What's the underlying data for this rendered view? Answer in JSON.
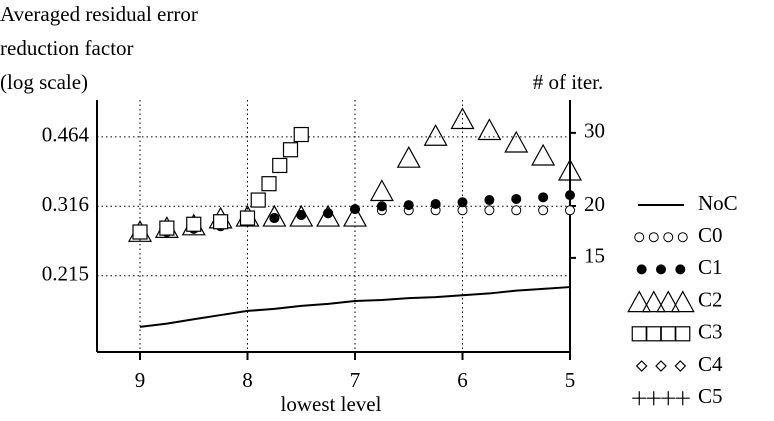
{
  "chart_data": {
    "type": "line",
    "ylabel": [
      "Averaged residual error",
      "reduction factor",
      "(log scale)"
    ],
    "y2label": "# of iter.",
    "xlabel": "lowest level",
    "x": [
      9,
      8.75,
      8.5,
      8.25,
      8,
      7.75,
      7.5,
      7.25,
      7,
      6.75,
      6.5,
      6.25,
      6,
      5.75,
      5.5,
      5.25,
      5
    ],
    "xlim": [
      9.4,
      5
    ],
    "xticks": [
      9,
      8,
      7,
      6,
      5
    ],
    "ylim": [
      0.141,
      0.569
    ],
    "yticks": [
      0.215,
      0.316,
      0.464
    ],
    "ylog": true,
    "y2lim": [
      8.9,
      36
    ],
    "y2ticks": [
      15,
      20,
      30
    ],
    "y2log": true,
    "grid": true,
    "legend": "right",
    "series": [
      {
        "name": "NoC",
        "marker": "line",
        "color": "#000000",
        "values": [
          0.162,
          0.165,
          0.169,
          0.173,
          0.177,
          0.179,
          0.182,
          0.184,
          0.187,
          0.188,
          0.19,
          0.191,
          0.193,
          0.195,
          0.198,
          0.2,
          0.202
        ]
      },
      {
        "name": "C0",
        "marker": "open-circle",
        "color": "#000000",
        "values": [
          0.271,
          0.274,
          0.279,
          0.283,
          0.29,
          0.296,
          0.301,
          0.304,
          0.311,
          0.309,
          0.309,
          0.309,
          0.309,
          0.309,
          0.309,
          0.309,
          0.309
        ]
      },
      {
        "name": "C1",
        "marker": "filled-circle",
        "color": "#000000",
        "values": [
          0.271,
          0.274,
          0.279,
          0.283,
          0.29,
          0.296,
          0.301,
          0.304,
          0.311,
          0.316,
          0.318,
          0.32,
          0.323,
          0.327,
          0.329,
          0.332,
          0.336
        ]
      },
      {
        "name": "C2",
        "marker": "triangle",
        "color": "#000000",
        "values": [
          0.272,
          0.278,
          0.282,
          0.293,
          0.296,
          0.296,
          0.296,
          0.296,
          0.296,
          0.341,
          0.41,
          0.463,
          0.508,
          0.478,
          0.446,
          0.415,
          0.382
        ]
      },
      {
        "name": "C3",
        "marker": "square",
        "color": "#000000",
        "x": [
          9,
          8.75,
          8.5,
          8.25,
          8,
          7.9,
          7.8,
          7.7,
          7.6,
          7.5
        ],
        "values": [
          0.274,
          0.28,
          0.286,
          0.29,
          0.296,
          0.327,
          0.358,
          0.396,
          0.432,
          0.47
        ]
      },
      {
        "name": "C4",
        "marker": "diamond",
        "color": "#000000",
        "values": [
          null,
          null,
          null,
          null,
          null,
          null,
          null,
          null,
          null,
          null,
          null,
          null,
          null,
          null,
          null,
          null,
          null
        ]
      },
      {
        "name": "C5",
        "marker": "plus",
        "color": "#000000",
        "values": [
          null,
          null,
          null,
          null,
          null,
          null,
          null,
          null,
          null,
          null,
          null,
          null,
          null,
          null,
          null,
          null,
          null
        ]
      }
    ]
  }
}
